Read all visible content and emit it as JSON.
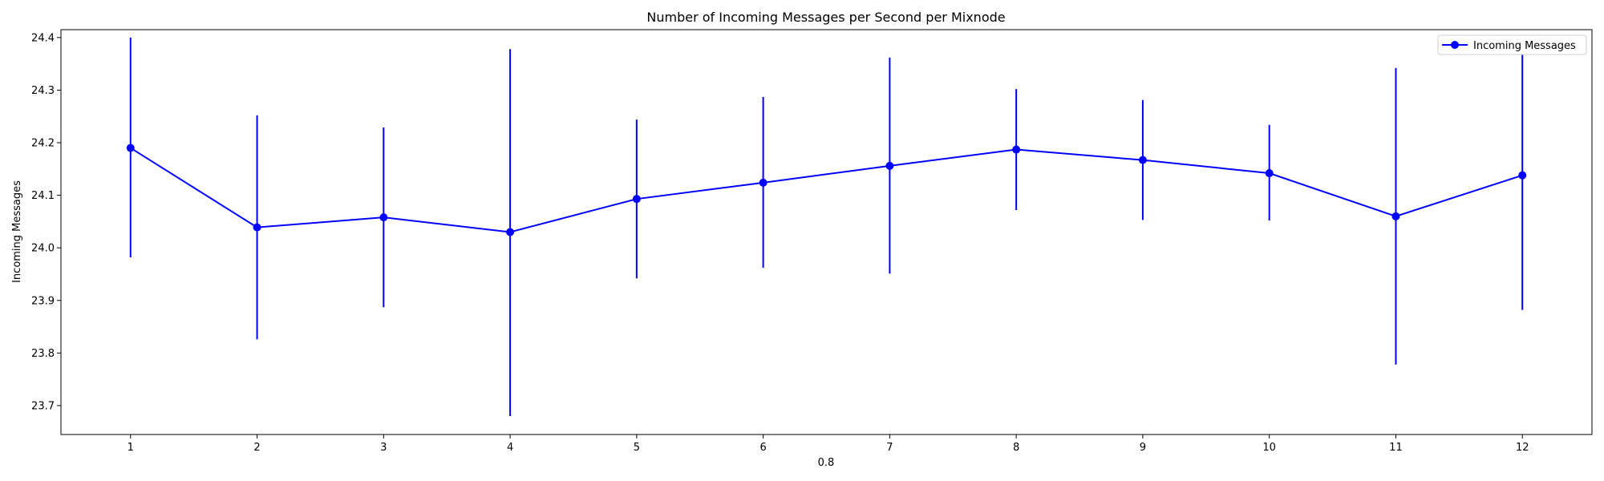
{
  "chart_data": {
    "type": "line",
    "title": "Number of Incoming Messages per Second per Mixnode",
    "xlabel": "0.8",
    "ylabel": "Incoming Messages",
    "x": [
      1,
      2,
      3,
      4,
      5,
      6,
      7,
      8,
      9,
      10,
      11,
      12
    ],
    "xlim": [
      0.45,
      12.55
    ],
    "ylim": [
      23.645,
      24.415
    ],
    "yticks": [
      23.7,
      23.8,
      23.9,
      24.0,
      24.1,
      24.2,
      24.3,
      24.4
    ],
    "ytick_labels": [
      "23.7",
      "23.8",
      "23.9",
      "24.0",
      "24.1",
      "24.2",
      "24.3",
      "24.4"
    ],
    "xtick_labels": [
      "1",
      "2",
      "3",
      "4",
      "5",
      "6",
      "7",
      "8",
      "9",
      "10",
      "11",
      "12"
    ],
    "grid": false,
    "legend_position": "top-right",
    "series": [
      {
        "name": "Incoming Messages",
        "color": "#0000ff",
        "marker": "circle",
        "values": [
          24.19,
          24.039,
          24.058,
          24.03,
          24.093,
          24.124,
          24.156,
          24.187,
          24.167,
          24.142,
          24.06,
          24.138
        ],
        "err_low": [
          23.982,
          23.826,
          23.887,
          23.68,
          23.942,
          23.962,
          23.951,
          24.072,
          24.053,
          24.052,
          23.778,
          23.882
        ],
        "err_high": [
          24.4,
          24.252,
          24.229,
          24.378,
          24.244,
          24.287,
          24.362,
          24.302,
          24.281,
          24.234,
          24.342,
          24.393
        ]
      }
    ]
  }
}
